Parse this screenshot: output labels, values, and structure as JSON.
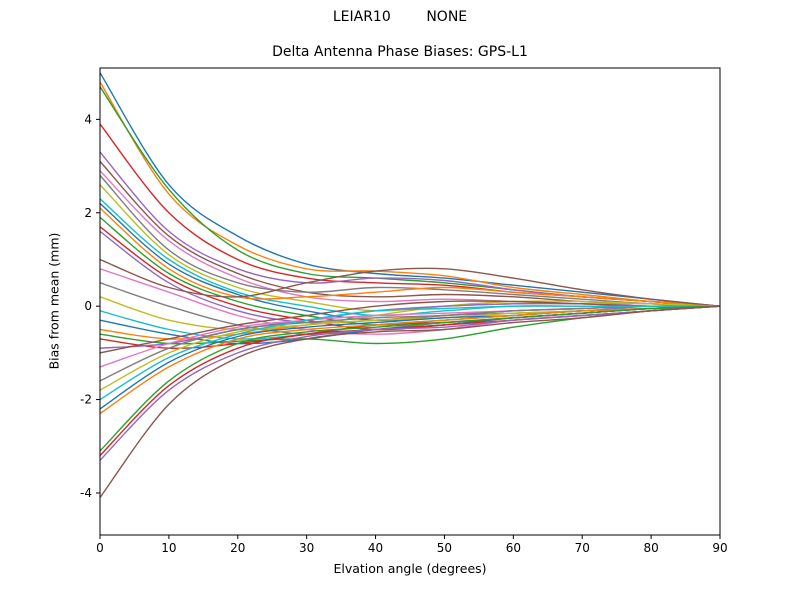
{
  "chart_data": {
    "type": "line",
    "title": "LEIAR10        NONE",
    "subtitle": "Delta Antenna Phase Biases: GPS-L1",
    "xlabel": "Elvation angle (degrees)",
    "ylabel": "Bias from mean (mm)",
    "xlim": [
      0,
      90
    ],
    "ylim": [
      -4.9,
      5.1
    ],
    "x_ticks": [
      0,
      10,
      20,
      30,
      40,
      50,
      60,
      70,
      80,
      90
    ],
    "y_ticks": [
      -4,
      -2,
      0,
      2,
      4
    ],
    "grid": false,
    "legend": "none",
    "palette": [
      "#1f77b4",
      "#ff7f0e",
      "#2ca02c",
      "#d62728",
      "#9467bd",
      "#8c564b",
      "#e377c2",
      "#7f7f7f",
      "#bcbd22",
      "#17becf"
    ],
    "x": [
      0,
      10,
      20,
      30,
      40,
      50,
      60,
      70,
      80,
      90
    ],
    "series": [
      {
        "values": [
          5.0,
          2.6,
          1.5,
          0.9,
          0.7,
          0.6,
          0.45,
          0.3,
          0.15,
          0.0
        ]
      },
      {
        "values": [
          4.8,
          2.4,
          1.3,
          0.8,
          0.75,
          0.65,
          0.4,
          0.25,
          0.1,
          0.0
        ]
      },
      {
        "values": [
          4.7,
          2.5,
          1.2,
          0.7,
          0.6,
          0.5,
          0.35,
          0.2,
          0.1,
          0.0
        ]
      },
      {
        "values": [
          3.9,
          2.0,
          1.0,
          0.6,
          0.5,
          0.45,
          0.3,
          0.2,
          0.1,
          0.0
        ]
      },
      {
        "values": [
          3.3,
          1.6,
          0.8,
          0.5,
          0.6,
          0.55,
          0.35,
          0.2,
          0.1,
          0.0
        ]
      },
      {
        "values": [
          3.1,
          1.5,
          0.7,
          0.3,
          0.2,
          0.25,
          0.2,
          0.1,
          0.05,
          0.0
        ]
      },
      {
        "values": [
          2.9,
          1.4,
          0.6,
          0.2,
          0.1,
          0.15,
          0.1,
          0.05,
          0.05,
          0.0
        ]
      },
      {
        "values": [
          2.8,
          1.2,
          0.5,
          0.3,
          0.4,
          0.35,
          0.25,
          0.15,
          0.05,
          0.0
        ]
      },
      {
        "values": [
          2.6,
          1.1,
          0.4,
          0.1,
          -0.1,
          0.0,
          0.05,
          0.05,
          0.0,
          0.0
        ]
      },
      {
        "values": [
          2.3,
          1.0,
          0.3,
          0.0,
          -0.2,
          -0.1,
          0.0,
          0.0,
          0.0,
          0.0
        ]
      },
      {
        "values": [
          2.2,
          0.9,
          0.25,
          -0.1,
          -0.3,
          -0.2,
          -0.1,
          -0.05,
          0.0,
          0.0
        ]
      },
      {
        "values": [
          2.1,
          0.8,
          0.2,
          0.2,
          0.3,
          0.4,
          0.3,
          0.2,
          0.1,
          0.0
        ]
      },
      {
        "values": [
          1.9,
          0.7,
          0.1,
          -0.2,
          -0.4,
          -0.3,
          -0.2,
          -0.1,
          -0.05,
          0.0
        ]
      },
      {
        "values": [
          1.7,
          0.6,
          0.0,
          -0.3,
          -0.5,
          -0.4,
          -0.25,
          -0.15,
          -0.05,
          0.0
        ]
      },
      {
        "values": [
          1.6,
          0.5,
          -0.1,
          -0.35,
          -0.3,
          -0.2,
          -0.15,
          -0.1,
          0.0,
          0.0
        ]
      },
      {
        "values": [
          1.0,
          0.4,
          0.2,
          0.5,
          0.75,
          0.8,
          0.6,
          0.35,
          0.15,
          0.0
        ]
      },
      {
        "values": [
          0.8,
          0.3,
          -0.2,
          -0.5,
          -0.6,
          -0.5,
          -0.3,
          -0.2,
          -0.1,
          0.0
        ]
      },
      {
        "values": [
          0.5,
          0.0,
          -0.4,
          -0.6,
          -0.5,
          -0.35,
          -0.25,
          -0.15,
          -0.05,
          0.0
        ]
      },
      {
        "values": [
          0.2,
          -0.3,
          -0.5,
          -0.4,
          -0.2,
          0.0,
          0.1,
          0.1,
          0.05,
          0.0
        ]
      },
      {
        "values": [
          -0.1,
          -0.5,
          -0.7,
          -0.6,
          -0.4,
          -0.3,
          -0.2,
          -0.1,
          -0.05,
          0.0
        ]
      },
      {
        "values": [
          -0.3,
          -0.6,
          -0.8,
          -0.7,
          -0.5,
          -0.4,
          -0.25,
          -0.15,
          -0.05,
          0.0
        ]
      },
      {
        "values": [
          -0.5,
          -0.7,
          -0.6,
          -0.4,
          -0.3,
          -0.2,
          -0.1,
          -0.05,
          0.0,
          0.0
        ]
      },
      {
        "values": [
          -0.6,
          -0.8,
          -0.75,
          -0.7,
          -0.8,
          -0.7,
          -0.45,
          -0.25,
          -0.1,
          0.0
        ]
      },
      {
        "values": [
          -0.7,
          -0.9,
          -0.8,
          -0.6,
          -0.4,
          -0.35,
          -0.25,
          -0.15,
          -0.05,
          0.0
        ]
      },
      {
        "values": [
          -0.9,
          -0.8,
          -0.5,
          -0.3,
          -0.1,
          0.0,
          0.05,
          0.05,
          0.0,
          0.0
        ]
      },
      {
        "values": [
          -1.0,
          -0.7,
          -0.4,
          -0.2,
          0.0,
          0.1,
          0.1,
          0.05,
          0.0,
          0.0
        ]
      },
      {
        "values": [
          -1.3,
          -0.8,
          -0.45,
          -0.3,
          -0.2,
          -0.15,
          -0.1,
          -0.05,
          0.0,
          0.0
        ]
      },
      {
        "values": [
          -1.6,
          -0.9,
          -0.5,
          -0.35,
          -0.25,
          -0.2,
          -0.1,
          -0.05,
          0.0,
          0.0
        ]
      },
      {
        "values": [
          -1.8,
          -1.0,
          -0.55,
          -0.4,
          -0.3,
          -0.25,
          -0.15,
          -0.1,
          -0.05,
          0.0
        ]
      },
      {
        "values": [
          -2.0,
          -1.1,
          -0.6,
          -0.3,
          -0.1,
          -0.05,
          0.0,
          0.0,
          0.0,
          0.0
        ]
      },
      {
        "values": [
          -2.2,
          -1.2,
          -0.65,
          -0.45,
          -0.35,
          -0.25,
          -0.2,
          -0.1,
          -0.05,
          0.0
        ]
      },
      {
        "values": [
          -2.3,
          -1.3,
          -0.7,
          -0.5,
          -0.4,
          -0.3,
          -0.2,
          -0.1,
          -0.05,
          0.0
        ]
      },
      {
        "values": [
          -3.1,
          -1.6,
          -0.8,
          -0.55,
          -0.45,
          -0.35,
          -0.25,
          -0.15,
          -0.05,
          0.0
        ]
      },
      {
        "values": [
          -3.2,
          -1.7,
          -0.9,
          -0.6,
          -0.5,
          -0.4,
          -0.3,
          -0.2,
          -0.1,
          0.0
        ]
      },
      {
        "values": [
          -3.3,
          -1.8,
          -1.0,
          -0.65,
          -0.5,
          -0.45,
          -0.3,
          -0.2,
          -0.1,
          0.0
        ]
      },
      {
        "values": [
          -4.1,
          -2.1,
          -1.1,
          -0.7,
          -0.55,
          -0.5,
          -0.35,
          -0.25,
          -0.1,
          0.0
        ]
      }
    ]
  }
}
